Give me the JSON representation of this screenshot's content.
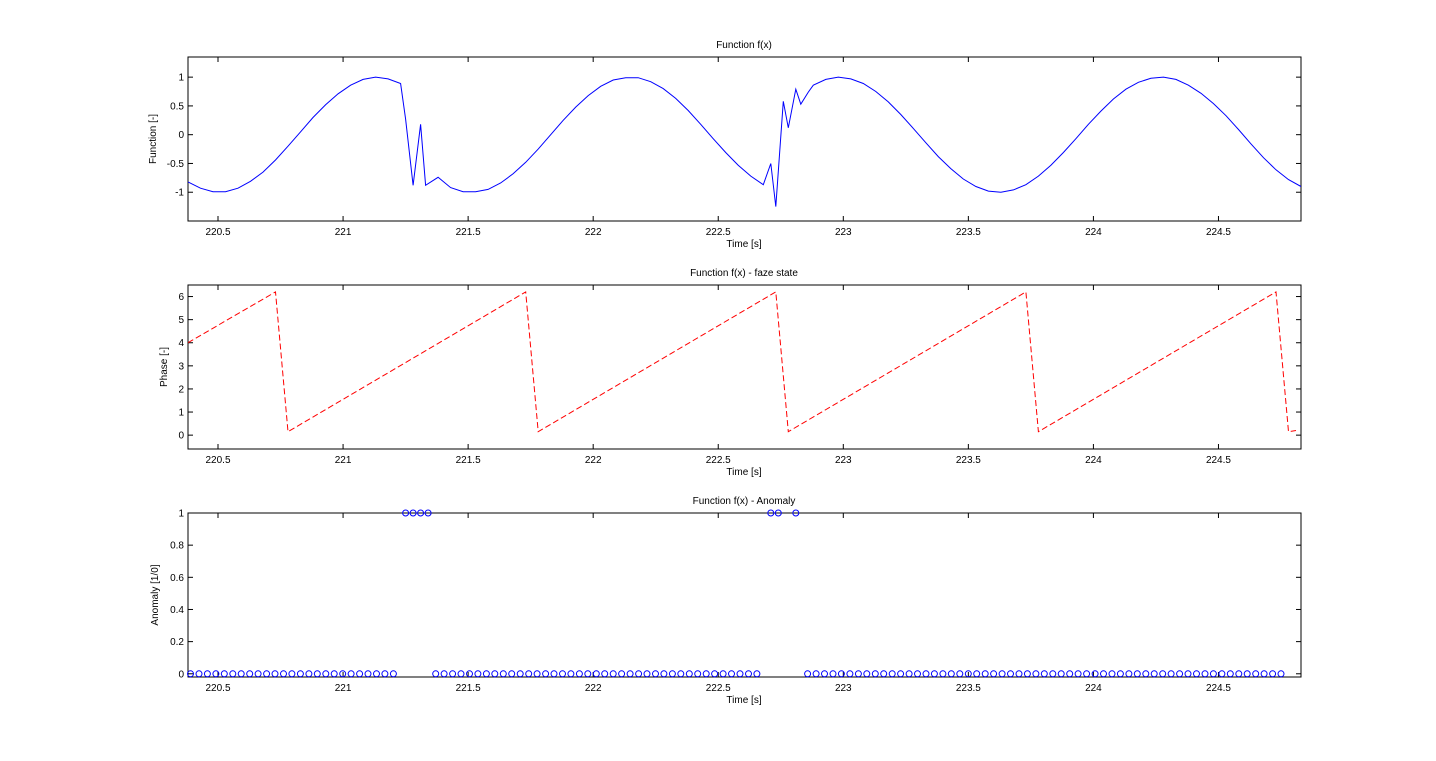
{
  "chart_data": [
    {
      "type": "line",
      "title": "Function f(x)",
      "xlabel": "Time [s]",
      "ylabel": "Function [-]",
      "xlim": [
        220.38,
        224.83
      ],
      "ylim": [
        -1.5,
        1.35
      ],
      "xticks": [
        220.5,
        221,
        221.5,
        222,
        222.5,
        223,
        223.5,
        224,
        224.5
      ],
      "xtick_labels": [
        "220.5",
        "221",
        "221.5",
        "222",
        "222.5",
        "223",
        "223.5",
        "224",
        "224.5"
      ],
      "yticks": [
        -1,
        -0.5,
        0,
        0.5,
        1
      ],
      "ytick_labels": [
        "-1",
        "-0.5",
        "0",
        "0.5",
        "1"
      ],
      "grid": false,
      "series": [
        {
          "color": "#0000ff",
          "style": "solid",
          "x": [
            220.38,
            220.43,
            220.48,
            220.53,
            220.58,
            220.63,
            220.68,
            220.73,
            220.78,
            220.83,
            220.88,
            220.93,
            220.98,
            221.03,
            221.08,
            221.13,
            221.18,
            221.23,
            221.25,
            221.28,
            221.31,
            221.33,
            221.38,
            221.43,
            221.48,
            221.53,
            221.58,
            221.63,
            221.68,
            221.73,
            221.78,
            221.83,
            221.88,
            221.93,
            221.98,
            222.03,
            222.08,
            222.13,
            222.18,
            222.23,
            222.28,
            222.33,
            222.38,
            222.43,
            222.48,
            222.53,
            222.58,
            222.63,
            222.68,
            222.71,
            222.73,
            222.76,
            222.78,
            222.81,
            222.83,
            222.86,
            222.88,
            222.93,
            222.98,
            223.03,
            223.08,
            223.13,
            223.18,
            223.23,
            223.28,
            223.33,
            223.38,
            223.43,
            223.48,
            223.53,
            223.58,
            223.63,
            223.68,
            223.73,
            223.78,
            223.83,
            223.88,
            223.93,
            223.98,
            224.03,
            224.08,
            224.13,
            224.18,
            224.23,
            224.28,
            224.33,
            224.38,
            224.43,
            224.48,
            224.53,
            224.58,
            224.63,
            224.68,
            224.73,
            224.78,
            224.83
          ],
          "y": [
            -0.82,
            -0.93,
            -0.99,
            -0.99,
            -0.93,
            -0.81,
            -0.65,
            -0.44,
            -0.2,
            0.05,
            0.3,
            0.52,
            0.71,
            0.86,
            0.96,
            1.0,
            0.97,
            0.89,
            0.27,
            -0.88,
            0.18,
            -0.88,
            -0.74,
            -0.92,
            -0.99,
            -0.99,
            -0.95,
            -0.84,
            -0.68,
            -0.48,
            -0.25,
            0.0,
            0.25,
            0.48,
            0.68,
            0.84,
            0.95,
            0.99,
            0.99,
            0.92,
            0.8,
            0.63,
            0.42,
            0.18,
            -0.07,
            -0.31,
            -0.53,
            -0.72,
            -0.87,
            -0.5,
            -1.25,
            0.58,
            0.12,
            0.79,
            0.53,
            0.74,
            0.86,
            0.96,
            1.0,
            0.97,
            0.89,
            0.75,
            0.57,
            0.35,
            0.11,
            -0.14,
            -0.38,
            -0.59,
            -0.77,
            -0.9,
            -0.98,
            -1.0,
            -0.96,
            -0.87,
            -0.72,
            -0.53,
            -0.31,
            -0.07,
            0.18,
            0.41,
            0.62,
            0.79,
            0.91,
            0.98,
            1.0,
            0.96,
            0.86,
            0.72,
            0.54,
            0.33,
            0.09,
            -0.16,
            -0.4,
            -0.61,
            -0.78,
            -0.9
          ]
        }
      ]
    },
    {
      "type": "line",
      "title": "Function f(x) - faze state",
      "xlabel": "Time [s]",
      "ylabel": "Phase [-]",
      "xlim": [
        220.38,
        224.83
      ],
      "ylim": [
        -0.6,
        6.5
      ],
      "xticks": [
        220.5,
        221,
        221.5,
        222,
        222.5,
        223,
        223.5,
        224,
        224.5
      ],
      "xtick_labels": [
        "220.5",
        "221",
        "221.5",
        "222",
        "222.5",
        "223",
        "223.5",
        "224",
        "224.5"
      ],
      "yticks": [
        0,
        1,
        2,
        3,
        4,
        5,
        6
      ],
      "ytick_labels": [
        "0",
        "1",
        "2",
        "3",
        "4",
        "5",
        "6"
      ],
      "grid": false,
      "series": [
        {
          "color": "#ff0000",
          "style": "dashed",
          "x": [
            220.38,
            220.73,
            220.78,
            221.73,
            221.78,
            222.73,
            222.78,
            223.73,
            223.78,
            224.73,
            224.78,
            224.81
          ],
          "y": [
            4.0,
            6.2,
            0.15,
            6.2,
            0.15,
            6.2,
            0.15,
            6.2,
            0.15,
            6.2,
            0.15,
            0.2
          ]
        }
      ]
    },
    {
      "type": "scatter",
      "title": "Function f(x) - Anomaly",
      "xlabel": "Time [s]",
      "ylabel": "Anomaly [1/0]",
      "xlim": [
        220.38,
        224.83
      ],
      "ylim": [
        -0.02,
        1.0
      ],
      "xticks": [
        220.5,
        221,
        221.5,
        222,
        222.5,
        223,
        223.5,
        224,
        224.5
      ],
      "xtick_labels": [
        "220.5",
        "221",
        "221.5",
        "222",
        "222.5",
        "223",
        "223.5",
        "224",
        "224.5"
      ],
      "yticks": [
        0,
        0.2,
        0.4,
        0.6,
        0.8,
        1
      ],
      "ytick_labels": [
        "0",
        "0.2",
        "0.4",
        "0.6",
        "0.8",
        "1"
      ],
      "grid": false,
      "series": [
        {
          "color": "#0000ff",
          "marker": "circle",
          "x_start": 220.39,
          "x_step": 0.0338,
          "count": 130,
          "anomaly_x": [
            221.25,
            221.28,
            221.31,
            221.34,
            222.71,
            222.74,
            222.81
          ]
        }
      ]
    }
  ]
}
